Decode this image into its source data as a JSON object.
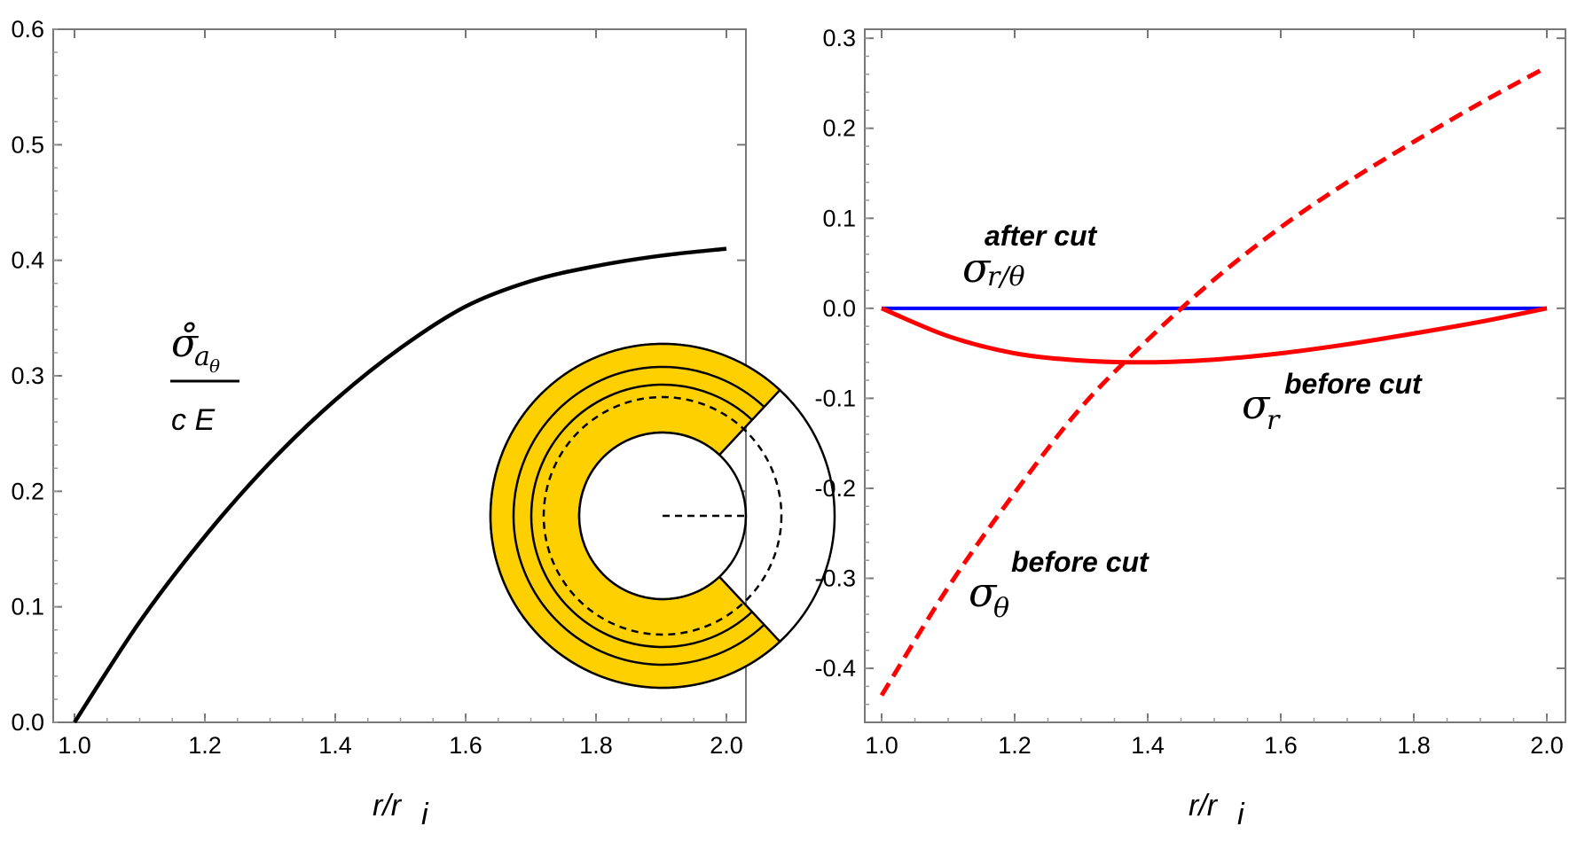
{
  "colors": {
    "black": "#000000",
    "red": "#ff0000",
    "blue": "#0000ff",
    "gold": "#ffd000"
  },
  "chart_data": [
    {
      "type": "line",
      "xlim": [
        1.0,
        2.0
      ],
      "ylim": [
        0.0,
        0.6
      ],
      "xticks": [
        "1.0",
        "1.2",
        "1.4",
        "1.6",
        "1.8",
        "2.0"
      ],
      "yticks": [
        "0.0",
        "0.1",
        "0.2",
        "0.3",
        "0.4",
        "0.5",
        "0.6"
      ],
      "xlabel_main": "r/r",
      "xlabel_sub": "i",
      "ylabel_numerator": "σ̊",
      "ylabel_numerator_sub": "a",
      "ylabel_numerator_subsub": "θ",
      "ylabel_denominator": "c E",
      "series": [
        {
          "name": "σ̊_aθ / cE",
          "color": "#000000",
          "x": [
            1.0,
            1.1,
            1.2,
            1.3,
            1.4,
            1.5,
            1.6,
            1.7,
            1.8,
            1.9,
            2.0
          ],
          "y": [
            0.0,
            0.087,
            0.161,
            0.225,
            0.279,
            0.324,
            0.36,
            0.382,
            0.395,
            0.404,
            0.41
          ]
        }
      ]
    },
    {
      "type": "line",
      "xlim": [
        1.0,
        2.0
      ],
      "ylim": [
        -0.46,
        0.31
      ],
      "xticks": [
        "1.0",
        "1.2",
        "1.4",
        "1.6",
        "1.8",
        "2.0"
      ],
      "yticks": [
        "0.3",
        "0.2",
        "0.1",
        "0.0",
        "-0.1",
        "-0.2",
        "-0.3",
        "-0.4"
      ],
      "xlabel_main": "r/r",
      "xlabel_sub": "i",
      "series": [
        {
          "name": "σ_r/θ after cut",
          "color": "#0000ff",
          "style": "solid",
          "x": [
            1.0,
            2.0
          ],
          "y": [
            0.0,
            0.0
          ]
        },
        {
          "name": "σ_r before cut",
          "color": "#ff0000",
          "style": "solid",
          "x": [
            1.0,
            1.1,
            1.2,
            1.3,
            1.4,
            1.5,
            1.6,
            1.7,
            1.8,
            1.9,
            2.0
          ],
          "y": [
            0.0,
            -0.031,
            -0.05,
            -0.058,
            -0.06,
            -0.057,
            -0.05,
            -0.04,
            -0.028,
            -0.015,
            0.0
          ]
        },
        {
          "name": "σ_θ before cut",
          "color": "#ff0000",
          "style": "dashed",
          "x": [
            1.0,
            1.1,
            1.2,
            1.3,
            1.4,
            1.5,
            1.6,
            1.7,
            1.8,
            1.9,
            2.0
          ],
          "y": [
            -0.43,
            -0.31,
            -0.205,
            -0.11,
            -0.035,
            0.032,
            0.09,
            0.14,
            0.185,
            0.228,
            0.268
          ]
        }
      ],
      "annotations": [
        {
          "symbol": "σ",
          "subscript": "r/θ",
          "superscript": "after cut"
        },
        {
          "symbol": "σ",
          "subscript": "r",
          "superscript": "before cut"
        },
        {
          "symbol": "σ",
          "subscript": "θ",
          "superscript": "before cut"
        }
      ]
    }
  ]
}
